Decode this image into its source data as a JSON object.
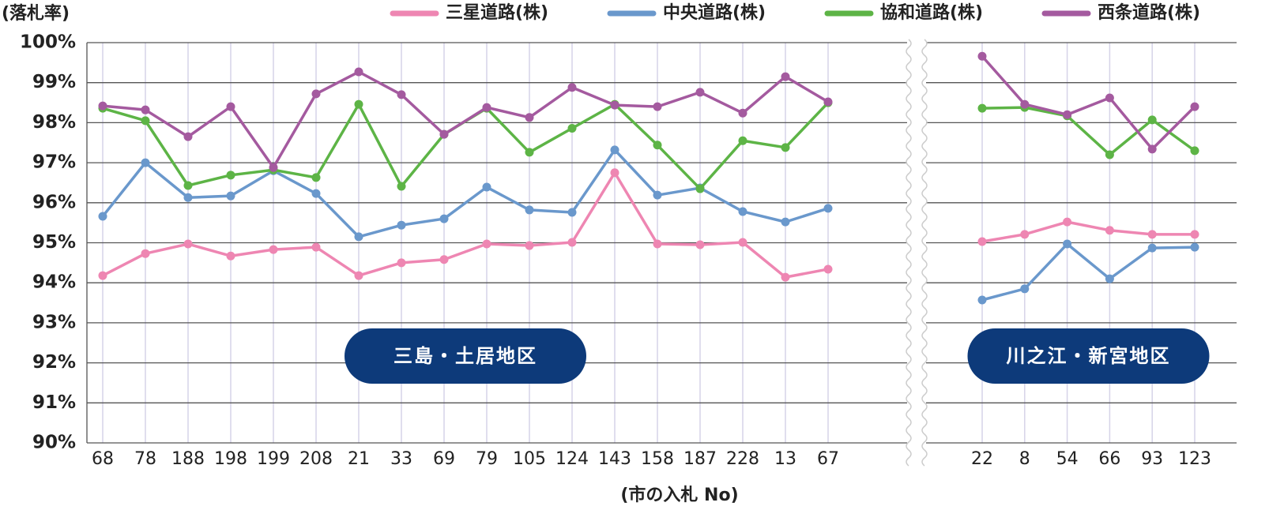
{
  "chart_data": {
    "type": "line",
    "ylabel": "(落札率)",
    "xlabel": "(市の入札 No)",
    "ylim": [
      90,
      100
    ],
    "yticks": [
      {
        "value": 90,
        "label": "90%"
      },
      {
        "value": 91,
        "label": "91%"
      },
      {
        "value": 92,
        "label": "92%"
      },
      {
        "value": 93,
        "label": "93%"
      },
      {
        "value": 94,
        "label": "94%"
      },
      {
        "value": 95,
        "label": "95%"
      },
      {
        "value": 96,
        "label": "96%"
      },
      {
        "value": 97,
        "label": "97%"
      },
      {
        "value": 98,
        "label": "98%"
      },
      {
        "value": 99,
        "label": "99%"
      },
      {
        "value": 100,
        "label": "100%"
      }
    ],
    "grid": true,
    "series": [
      {
        "name": "三星道路(株)",
        "color": "#ee86b2"
      },
      {
        "name": "中央道路(株)",
        "color": "#6a98cc"
      },
      {
        "name": "協和道路(株)",
        "color": "#5db446"
      },
      {
        "name": "西条道路(株)",
        "color": "#a45a9f"
      }
    ],
    "panels": [
      {
        "label": "三島・土居地区",
        "categories": [
          "68",
          "78",
          "188",
          "198",
          "199",
          "208",
          "21",
          "33",
          "69",
          "79",
          "105",
          "124",
          "143",
          "158",
          "187",
          "228",
          "13",
          "67"
        ],
        "series": [
          {
            "values": [
              94.18,
              94.73,
              94.97,
              94.67,
              94.83,
              94.89,
              94.18,
              94.5,
              94.58,
              94.97,
              94.93,
              95.01,
              96.75,
              94.97,
              94.95,
              95.01,
              94.14,
              94.34
            ]
          },
          {
            "values": [
              95.66,
              97.0,
              96.13,
              96.17,
              96.8,
              96.23,
              95.15,
              95.44,
              95.6,
              96.39,
              95.82,
              95.76,
              97.32,
              96.19,
              96.37,
              95.78,
              95.52,
              95.86
            ]
          },
          {
            "values": [
              98.36,
              98.05,
              96.43,
              96.69,
              96.82,
              96.63,
              98.46,
              96.41,
              97.71,
              98.36,
              97.26,
              97.86,
              98.46,
              97.44,
              96.35,
              97.55,
              97.38,
              98.5
            ]
          },
          {
            "values": [
              98.42,
              98.32,
              97.65,
              98.4,
              96.88,
              98.72,
              99.27,
              98.7,
              97.71,
              98.38,
              98.13,
              98.88,
              98.44,
              98.4,
              98.76,
              98.24,
              99.15,
              98.52
            ]
          }
        ]
      },
      {
        "label": "川之江・新宮地区",
        "categories": [
          "22",
          "8",
          "54",
          "66",
          "93",
          "123"
        ],
        "series": [
          {
            "values": [
              95.03,
              95.21,
              95.52,
              95.31,
              95.21,
              95.21
            ]
          },
          {
            "values": [
              93.57,
              93.85,
              94.97,
              94.1,
              94.87,
              94.89
            ]
          },
          {
            "values": [
              98.36,
              98.38,
              98.17,
              97.2,
              98.07,
              97.3
            ]
          },
          {
            "values": [
              99.66,
              98.46,
              98.2,
              98.62,
              97.34,
              98.4
            ]
          }
        ]
      }
    ]
  }
}
